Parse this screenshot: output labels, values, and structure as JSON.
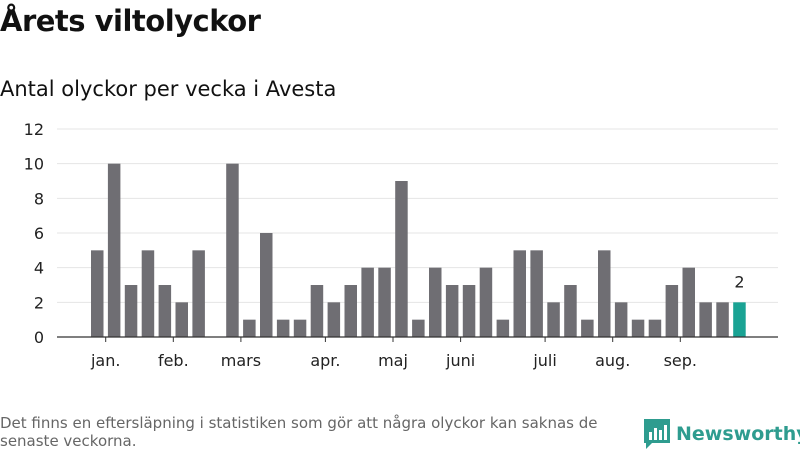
{
  "title": "Årets viltolyckor",
  "subtitle": "Antal olyckor per vecka i Avesta",
  "footnote": "Det finns en eftersläpning i statistiken som gör att några olyckor kan saknas de senaste veckorna.",
  "brand": "Newsworthy",
  "colors": {
    "bar": "#6f6e73",
    "highlight": "#1aa394",
    "grid": "#e4e4e4",
    "axis": "#333333",
    "brand": "#2e9c8f"
  },
  "chart_data": {
    "type": "bar",
    "xlabel": "",
    "ylabel": "",
    "ylim": [
      0,
      12
    ],
    "yticks": [
      0,
      2,
      4,
      6,
      8,
      10,
      12
    ],
    "grid": true,
    "values": [
      5,
      10,
      3,
      5,
      3,
      2,
      5,
      0,
      10,
      1,
      6,
      1,
      1,
      3,
      2,
      3,
      4,
      4,
      9,
      1,
      4,
      3,
      3,
      4,
      1,
      5,
      5,
      2,
      3,
      1,
      5,
      2,
      1,
      1,
      3,
      4,
      2,
      2,
      2
    ],
    "highlight_index": 38,
    "highlight_label": "2",
    "month_labels": [
      {
        "label": "jan.",
        "week": 1
      },
      {
        "label": "feb.",
        "week": 5
      },
      {
        "label": "mars",
        "week": 9
      },
      {
        "label": "apr.",
        "week": 14
      },
      {
        "label": "maj",
        "week": 18
      },
      {
        "label": "juni",
        "week": 22
      },
      {
        "label": "juli",
        "week": 27
      },
      {
        "label": "aug.",
        "week": 31
      },
      {
        "label": "sep.",
        "week": 35
      }
    ]
  }
}
